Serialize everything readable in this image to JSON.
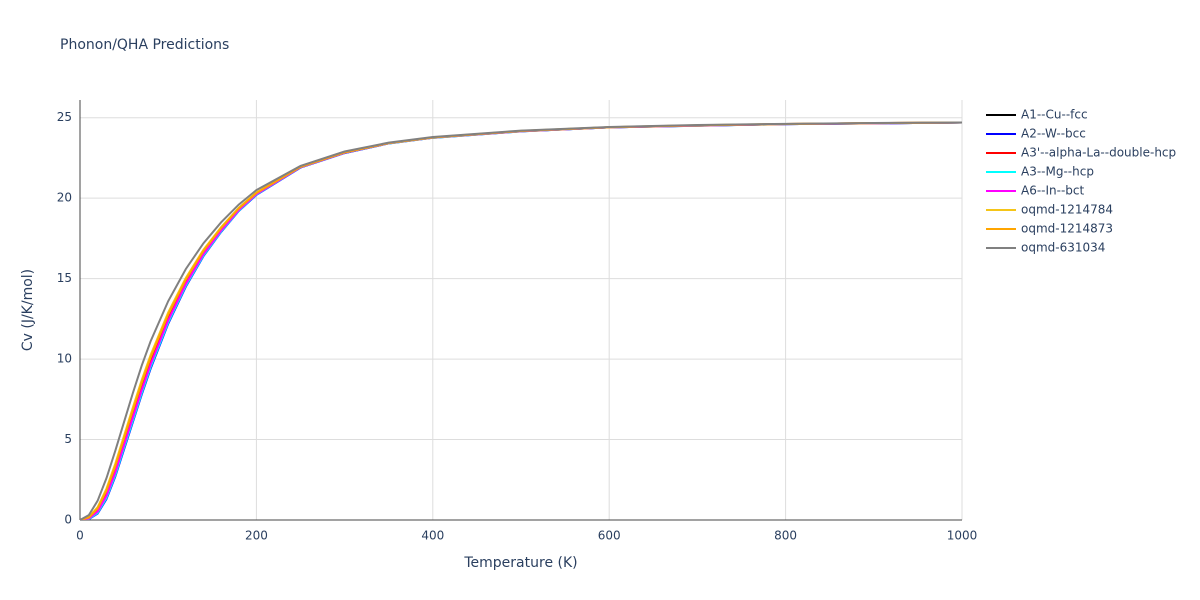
{
  "chart_data": {
    "type": "line",
    "title": "Phonon/QHA Predictions",
    "x_label": "Temperature (K)",
    "y_label": "Cv (J/K/mol)",
    "x": [
      0,
      10,
      20,
      30,
      40,
      50,
      60,
      70,
      80,
      100,
      120,
      140,
      160,
      180,
      200,
      250,
      300,
      350,
      400,
      500,
      600,
      700,
      800,
      900,
      1000
    ],
    "xlim": [
      0,
      1000
    ],
    "xticks": [
      0,
      200,
      400,
      600,
      800,
      1000
    ],
    "ylim": [
      0,
      26.1
    ],
    "yticks": [
      0,
      5,
      10,
      15,
      20,
      25
    ],
    "grid": true,
    "legend": "right",
    "series": [
      {
        "name": "A1--Cu--fcc",
        "color": "#000000",
        "values": [
          0,
          0.08,
          0.48,
          1.43,
          2.86,
          4.57,
          6.28,
          7.98,
          9.57,
          12.34,
          14.61,
          16.48,
          17.96,
          19.24,
          20.23,
          21.91,
          22.81,
          23.41,
          23.76,
          24.16,
          24.4,
          24.51,
          24.6,
          24.65,
          24.7
        ]
      },
      {
        "name": "A2--W--bcc",
        "color": "#0000ff",
        "values": [
          0,
          0.05,
          0.4,
          1.3,
          2.7,
          4.4,
          6.1,
          7.8,
          9.4,
          12.2,
          14.5,
          16.4,
          17.9,
          19.2,
          20.2,
          21.9,
          22.8,
          23.4,
          23.75,
          24.15,
          24.4,
          24.5,
          24.6,
          24.65,
          24.7
        ]
      },
      {
        "name": "A3'--alpha-La--double-hcp",
        "color": "#ff0000",
        "values": [
          0,
          0.11,
          0.6,
          1.63,
          3.1,
          4.83,
          6.55,
          8.25,
          9.83,
          12.55,
          14.78,
          16.6,
          18.05,
          19.3,
          20.28,
          21.93,
          22.83,
          23.41,
          23.76,
          24.16,
          24.41,
          24.51,
          24.61,
          24.66,
          24.7
        ]
      },
      {
        "name": "A3--Mg--hcp",
        "color": "#00ffff",
        "values": [
          0,
          0.06,
          0.44,
          1.37,
          2.78,
          4.49,
          6.19,
          7.89,
          9.49,
          12.27,
          14.56,
          16.44,
          17.93,
          19.22,
          20.22,
          21.91,
          22.81,
          23.4,
          23.75,
          24.15,
          24.4,
          24.5,
          24.6,
          24.65,
          24.7
        ]
      },
      {
        "name": "A6--In--bct",
        "color": "#ff00ff",
        "values": [
          0,
          0.09,
          0.52,
          1.5,
          2.94,
          4.66,
          6.37,
          8.07,
          9.66,
          12.41,
          14.67,
          16.52,
          17.99,
          19.26,
          20.25,
          21.92,
          22.82,
          23.41,
          23.76,
          24.16,
          24.4,
          24.51,
          24.6,
          24.65,
          24.7
        ]
      },
      {
        "name": "oqmd-1214784",
        "color": "#f5c518",
        "values": [
          0,
          0.18,
          0.8,
          1.95,
          3.5,
          5.25,
          7.0,
          8.7,
          10.25,
          12.9,
          15.05,
          16.8,
          18.2,
          19.4,
          20.35,
          21.95,
          22.85,
          23.43,
          23.78,
          24.18,
          24.41,
          24.53,
          24.61,
          24.66,
          24.7
        ]
      },
      {
        "name": "oqmd-1214873",
        "color": "#ffa500",
        "values": [
          0,
          0.15,
          0.72,
          1.82,
          3.34,
          5.08,
          6.82,
          8.52,
          10.08,
          12.76,
          14.94,
          16.72,
          18.14,
          19.36,
          20.32,
          21.94,
          22.84,
          23.42,
          23.77,
          24.17,
          24.41,
          24.52,
          24.61,
          24.66,
          24.7
        ]
      },
      {
        "name": "oqmd-631034",
        "color": "#808080",
        "values": [
          0,
          0.3,
          1.2,
          2.6,
          4.3,
          6.1,
          7.9,
          9.6,
          11.1,
          13.6,
          15.6,
          17.2,
          18.5,
          19.6,
          20.5,
          22.0,
          22.9,
          23.45,
          23.8,
          24.2,
          24.42,
          24.55,
          24.62,
          24.67,
          24.7
        ]
      }
    ]
  }
}
